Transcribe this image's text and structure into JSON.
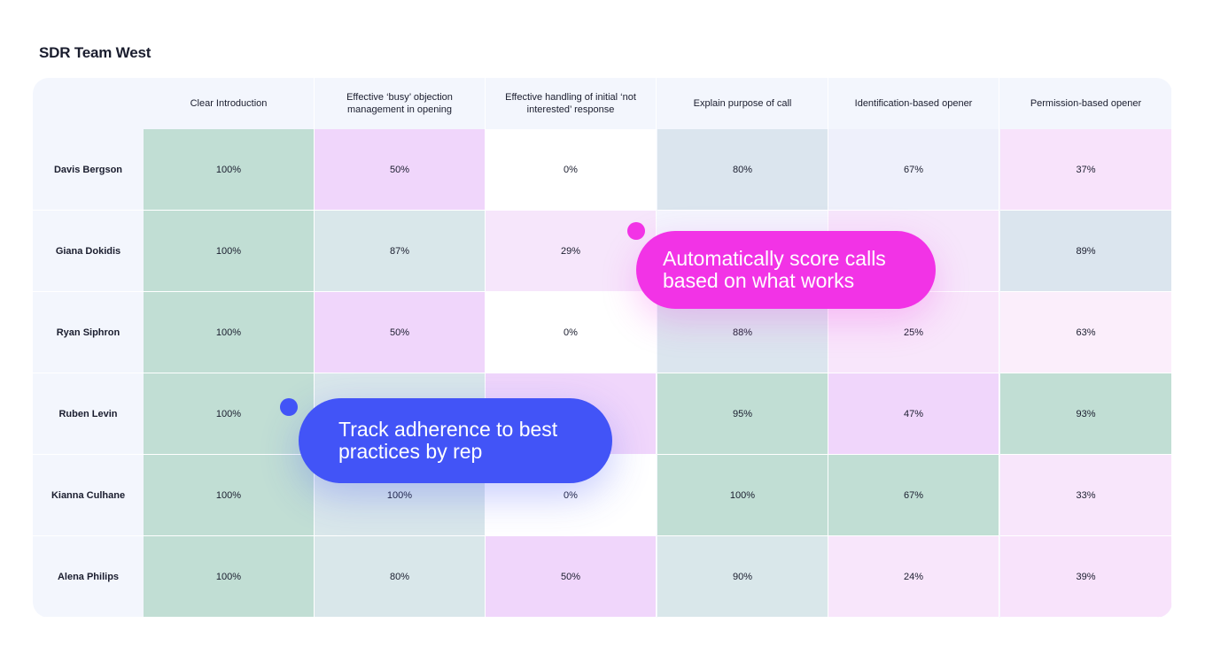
{
  "page_title": "SDR Team West",
  "chart_data": {
    "type": "heatmap",
    "title": "SDR Team West",
    "columns": [
      "Clear Introduction",
      "Effective ‘busy’ objection management in opening",
      "Effective handling of initial ‘not interested’ response",
      "Explain purpose of call",
      "Identification-based opener",
      "Permission-based opener"
    ],
    "rows": [
      {
        "name": "Davis Bergson",
        "values": [
          "100%",
          "50%",
          "0%",
          "80%",
          "67%",
          "37%"
        ]
      },
      {
        "name": "Giana Dokidis",
        "values": [
          "100%",
          "87%",
          "29%",
          "",
          "",
          "89%"
        ]
      },
      {
        "name": "Ryan Siphron",
        "values": [
          "100%",
          "50%",
          "0%",
          "88%",
          "25%",
          "63%"
        ]
      },
      {
        "name": "Ruben Levin",
        "values": [
          "100%",
          "",
          "",
          "95%",
          "47%",
          "93%"
        ]
      },
      {
        "name": "Kianna Culhane",
        "values": [
          "100%",
          "100%",
          "0%",
          "100%",
          "67%",
          "33%"
        ]
      },
      {
        "name": "Alena Philips",
        "values": [
          "100%",
          "80%",
          "50%",
          "90%",
          "24%",
          "39%"
        ]
      }
    ],
    "cell_colors": [
      [
        "#c1ded4",
        "#f0d6fb",
        "#ffffff",
        "#dbe5ee",
        "#eef0fb",
        "#f8e3fb"
      ],
      [
        "#c1ded4",
        "#d9e7ea",
        "#f6e6fb",
        "#f3f4fd",
        "#f6e6fb",
        "#dbe5ee"
      ],
      [
        "#c1ded4",
        "#f0d6fb",
        "#ffffff",
        "#dbe5ee",
        "#f8e6fb",
        "#fbeefb"
      ],
      [
        "#c1ded4",
        "#d9e7ea",
        "#f0d6fb",
        "#c1ded4",
        "#f0d6fb",
        "#c1ded4"
      ],
      [
        "#c1ded4",
        "#d9e7ea",
        "#ffffff",
        "#c1ded4",
        "#c1ded4",
        "#f8e6fb"
      ],
      [
        "#c1ded4",
        "#d9e7ea",
        "#f0d6fb",
        "#d9e7ea",
        "#f8e6fb",
        "#f8e3fb"
      ]
    ]
  },
  "callouts": {
    "score": {
      "line1": "Automatically score calls",
      "line2": "based on what works",
      "color": "#f233e6"
    },
    "track": {
      "line1": "Track adherence to best",
      "line2": "practices by rep",
      "color": "#4254f7"
    }
  }
}
